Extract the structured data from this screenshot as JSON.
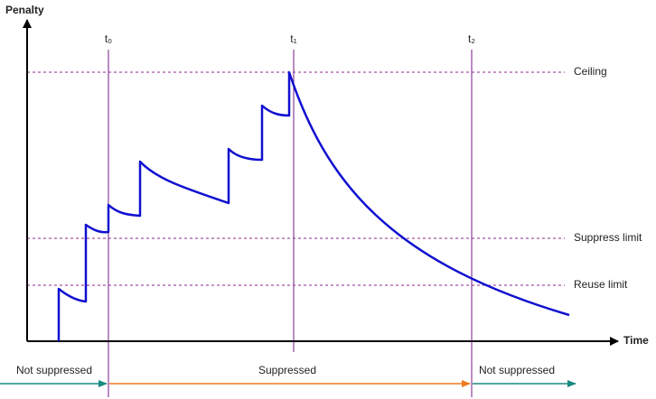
{
  "axes": {
    "y_label": "Penalty",
    "x_label": "Time"
  },
  "times": [
    "t₀",
    "t₁",
    "t₂"
  ],
  "thresholds": [
    "Ceiling",
    "Suppress limit",
    "Reuse limit"
  ],
  "phases": [
    "Not suppressed",
    "Suppressed",
    "Not suppressed"
  ]
}
